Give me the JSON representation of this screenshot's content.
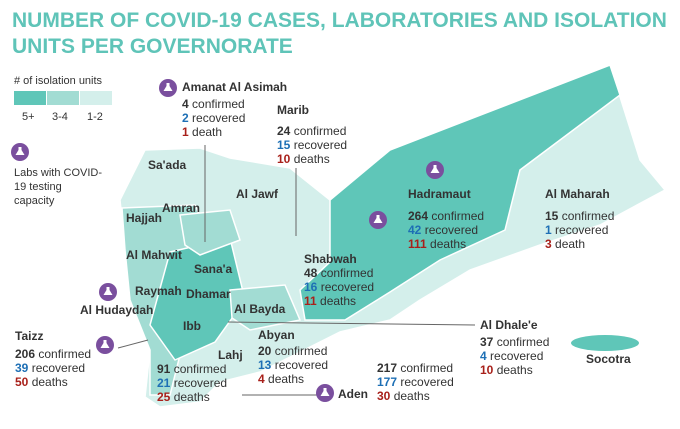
{
  "title": "NUMBER OF COVID-19 CASES, LABORATORIES AND ISOLATION UNITS PER GOVERNORATE",
  "legend": {
    "title": "# of isolation units",
    "levels": [
      "5+",
      "3-4",
      "1-2"
    ],
    "lab_label": "Labs with COVID-19 testing capacity"
  },
  "governorates": [
    {
      "name": "Amanat Al Asimah",
      "stats": [
        {
          "count": 4,
          "label": "confirmed"
        },
        {
          "count": 2,
          "label": "recovered"
        },
        {
          "count": 1,
          "label": "death"
        }
      ]
    },
    {
      "name": "Marib",
      "stats": [
        {
          "count": 24,
          "label": "confirmed"
        },
        {
          "count": 15,
          "label": "recovered"
        },
        {
          "count": 10,
          "label": "deaths"
        }
      ]
    },
    {
      "name": "Hadramaut",
      "stats": [
        {
          "count": 264,
          "label": "confirmed"
        },
        {
          "count": 42,
          "label": "recovered"
        },
        {
          "count": 111,
          "label": "deaths"
        }
      ]
    },
    {
      "name": "Al Maharah",
      "stats": [
        {
          "count": 15,
          "label": "confirmed"
        },
        {
          "count": 1,
          "label": "recovered"
        },
        {
          "count": 3,
          "label": "death"
        }
      ]
    },
    {
      "name": "Shabwah",
      "stats": [
        {
          "count": 48,
          "label": "confirmed"
        },
        {
          "count": 16,
          "label": "recovered"
        },
        {
          "count": 11,
          "label": "deaths"
        }
      ]
    },
    {
      "name": "Taizz",
      "stats": [
        {
          "count": 206,
          "label": "confirmed"
        },
        {
          "count": 39,
          "label": "recovered"
        },
        {
          "count": 50,
          "label": "deaths"
        }
      ]
    },
    {
      "name": "Lahj",
      "stats": [
        {
          "count": 91,
          "label": "confirmed"
        },
        {
          "count": 21,
          "label": "recovered"
        },
        {
          "count": 25,
          "label": "deaths"
        }
      ]
    },
    {
      "name": "Abyan",
      "stats": [
        {
          "count": 20,
          "label": "confirmed"
        },
        {
          "count": 13,
          "label": "recovered"
        },
        {
          "count": 4,
          "label": "deaths"
        }
      ]
    },
    {
      "name": "Al Dhale'e",
      "stats": [
        {
          "count": 37,
          "label": "confirmed"
        },
        {
          "count": 4,
          "label": "recovered"
        },
        {
          "count": 10,
          "label": "deaths"
        }
      ]
    },
    {
      "name": "Aden",
      "stats": [
        {
          "count": 217,
          "label": "confirmed"
        },
        {
          "count": 177,
          "label": "recovered"
        },
        {
          "count": 30,
          "label": "deaths"
        }
      ]
    }
  ],
  "map_labels": [
    "Sa'ada",
    "Amran",
    "Hajjah",
    "Al Jawf",
    "Al Mahwit",
    "Sana'a",
    "Raymah",
    "Dhamar",
    "Al Hudaydah",
    "Ibb",
    "Al Bayda",
    "Socotra"
  ]
}
